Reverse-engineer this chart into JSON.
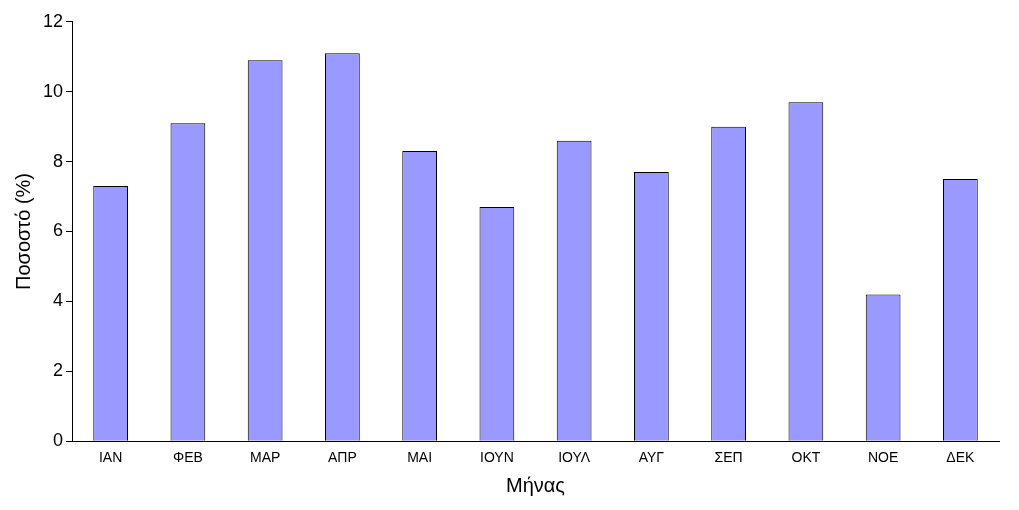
{
  "chart_data": {
    "type": "bar",
    "xlabel": "Μήνας",
    "ylabel": "Ποσοστό (%)",
    "categories": [
      "ΙΑΝ",
      "ΦΕΒ",
      "ΜΑΡ",
      "ΑΠΡ",
      "ΜΑΙ",
      "ΙΟΥΝ",
      "ΙΟΥΛ",
      "ΑΥΓ",
      "ΣΕΠ",
      "ΟΚΤ",
      "ΝΟΕ",
      "ΔΕΚ"
    ],
    "values": [
      7.3,
      9.1,
      10.9,
      11.1,
      8.3,
      6.7,
      8.6,
      7.7,
      9.0,
      9.7,
      4.2,
      7.5
    ],
    "color": "#9999ff",
    "ylim": [
      0,
      12
    ],
    "yticks": [
      0,
      2,
      4,
      6,
      8,
      10,
      12
    ],
    "grid": false,
    "legend": false
  }
}
